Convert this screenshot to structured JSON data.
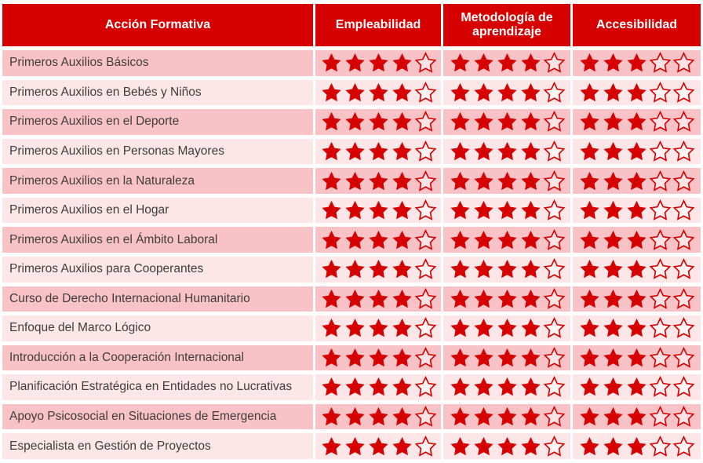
{
  "table": {
    "columns": [
      {
        "label": "Acción Formativa"
      },
      {
        "label": "Empleabilidad"
      },
      {
        "label": "Metodología de aprendizaje"
      },
      {
        "label": "Accesibilidad"
      }
    ],
    "max_stars": 5,
    "rows": [
      {
        "name": "Primeros Auxilios Básicos",
        "ratings": [
          4,
          4,
          3
        ]
      },
      {
        "name": "Primeros Auxilios en Bebés y Niños",
        "ratings": [
          4,
          4,
          3
        ]
      },
      {
        "name": "Primeros Auxilios en el Deporte",
        "ratings": [
          4,
          4,
          3
        ]
      },
      {
        "name": "Primeros Auxilios en Personas Mayores",
        "ratings": [
          4,
          4,
          3
        ]
      },
      {
        "name": "Primeros Auxilios en la Naturaleza",
        "ratings": [
          4,
          4,
          3
        ]
      },
      {
        "name": "Primeros Auxilios en el Hogar",
        "ratings": [
          4,
          4,
          3
        ]
      },
      {
        "name": "Primeros Auxilios en el Ámbito Laboral",
        "ratings": [
          4,
          4,
          3
        ]
      },
      {
        "name": "Primeros Auxilios para Cooperantes",
        "ratings": [
          4,
          4,
          3
        ]
      },
      {
        "name": "Curso de Derecho Internacional Humanitario",
        "ratings": [
          4,
          4,
          3
        ]
      },
      {
        "name": "Enfoque del Marco Lógico",
        "ratings": [
          4,
          4,
          3
        ]
      },
      {
        "name": "Introducción a la Cooperación Internacional",
        "ratings": [
          4,
          4,
          3
        ]
      },
      {
        "name": "Planificación Estratégica en Entidades no Lucrativas",
        "ratings": [
          4,
          4,
          3
        ]
      },
      {
        "name": "Apoyo Psicosocial en Situaciones de Emergencia",
        "ratings": [
          4,
          4,
          3
        ]
      },
      {
        "name": "Especialista en Gestión de Proyectos",
        "ratings": [
          4,
          4,
          3
        ]
      }
    ]
  },
  "colors": {
    "header_red": "#d60000",
    "star_red": "#d60000",
    "row_odd_pink": "#f9c2c6",
    "row_even_pink": "#fce6e7",
    "separator_white": "#ffffff",
    "text_dark": "#3d3d3d"
  },
  "chart_data": {
    "type": "table",
    "title": "",
    "columns": [
      "Acción Formativa",
      "Empleabilidad",
      "Metodología de aprendizaje",
      "Accesibilidad"
    ],
    "categories": [
      "Primeros Auxilios Básicos",
      "Primeros Auxilios en Bebés y Niños",
      "Primeros Auxilios en el Deporte",
      "Primeros Auxilios en Personas Mayores",
      "Primeros Auxilios en la Naturaleza",
      "Primeros Auxilios en el Hogar",
      "Primeros Auxilios en el Ámbito Laboral",
      "Primeros Auxilios para Cooperantes",
      "Curso de Derecho Internacional Humanitario",
      "Enfoque del Marco Lógico",
      "Introducción a la Cooperación Internacional",
      "Planificación Estratégica en Entidades no Lucrativas",
      "Apoyo Psicosocial en Situaciones de Emergencia",
      "Especialista en Gestión de Proyectos"
    ],
    "series": [
      {
        "name": "Empleabilidad",
        "values": [
          4,
          4,
          4,
          4,
          4,
          4,
          4,
          4,
          4,
          4,
          4,
          4,
          4,
          4
        ]
      },
      {
        "name": "Metodología de aprendizaje",
        "values": [
          4,
          4,
          4,
          4,
          4,
          4,
          4,
          4,
          4,
          4,
          4,
          4,
          4,
          4
        ]
      },
      {
        "name": "Accesibilidad",
        "values": [
          3,
          3,
          3,
          3,
          3,
          3,
          3,
          3,
          3,
          3,
          3,
          3,
          3,
          3
        ]
      }
    ],
    "scale_max": 5,
    "legend_position": "none",
    "grid": false
  }
}
